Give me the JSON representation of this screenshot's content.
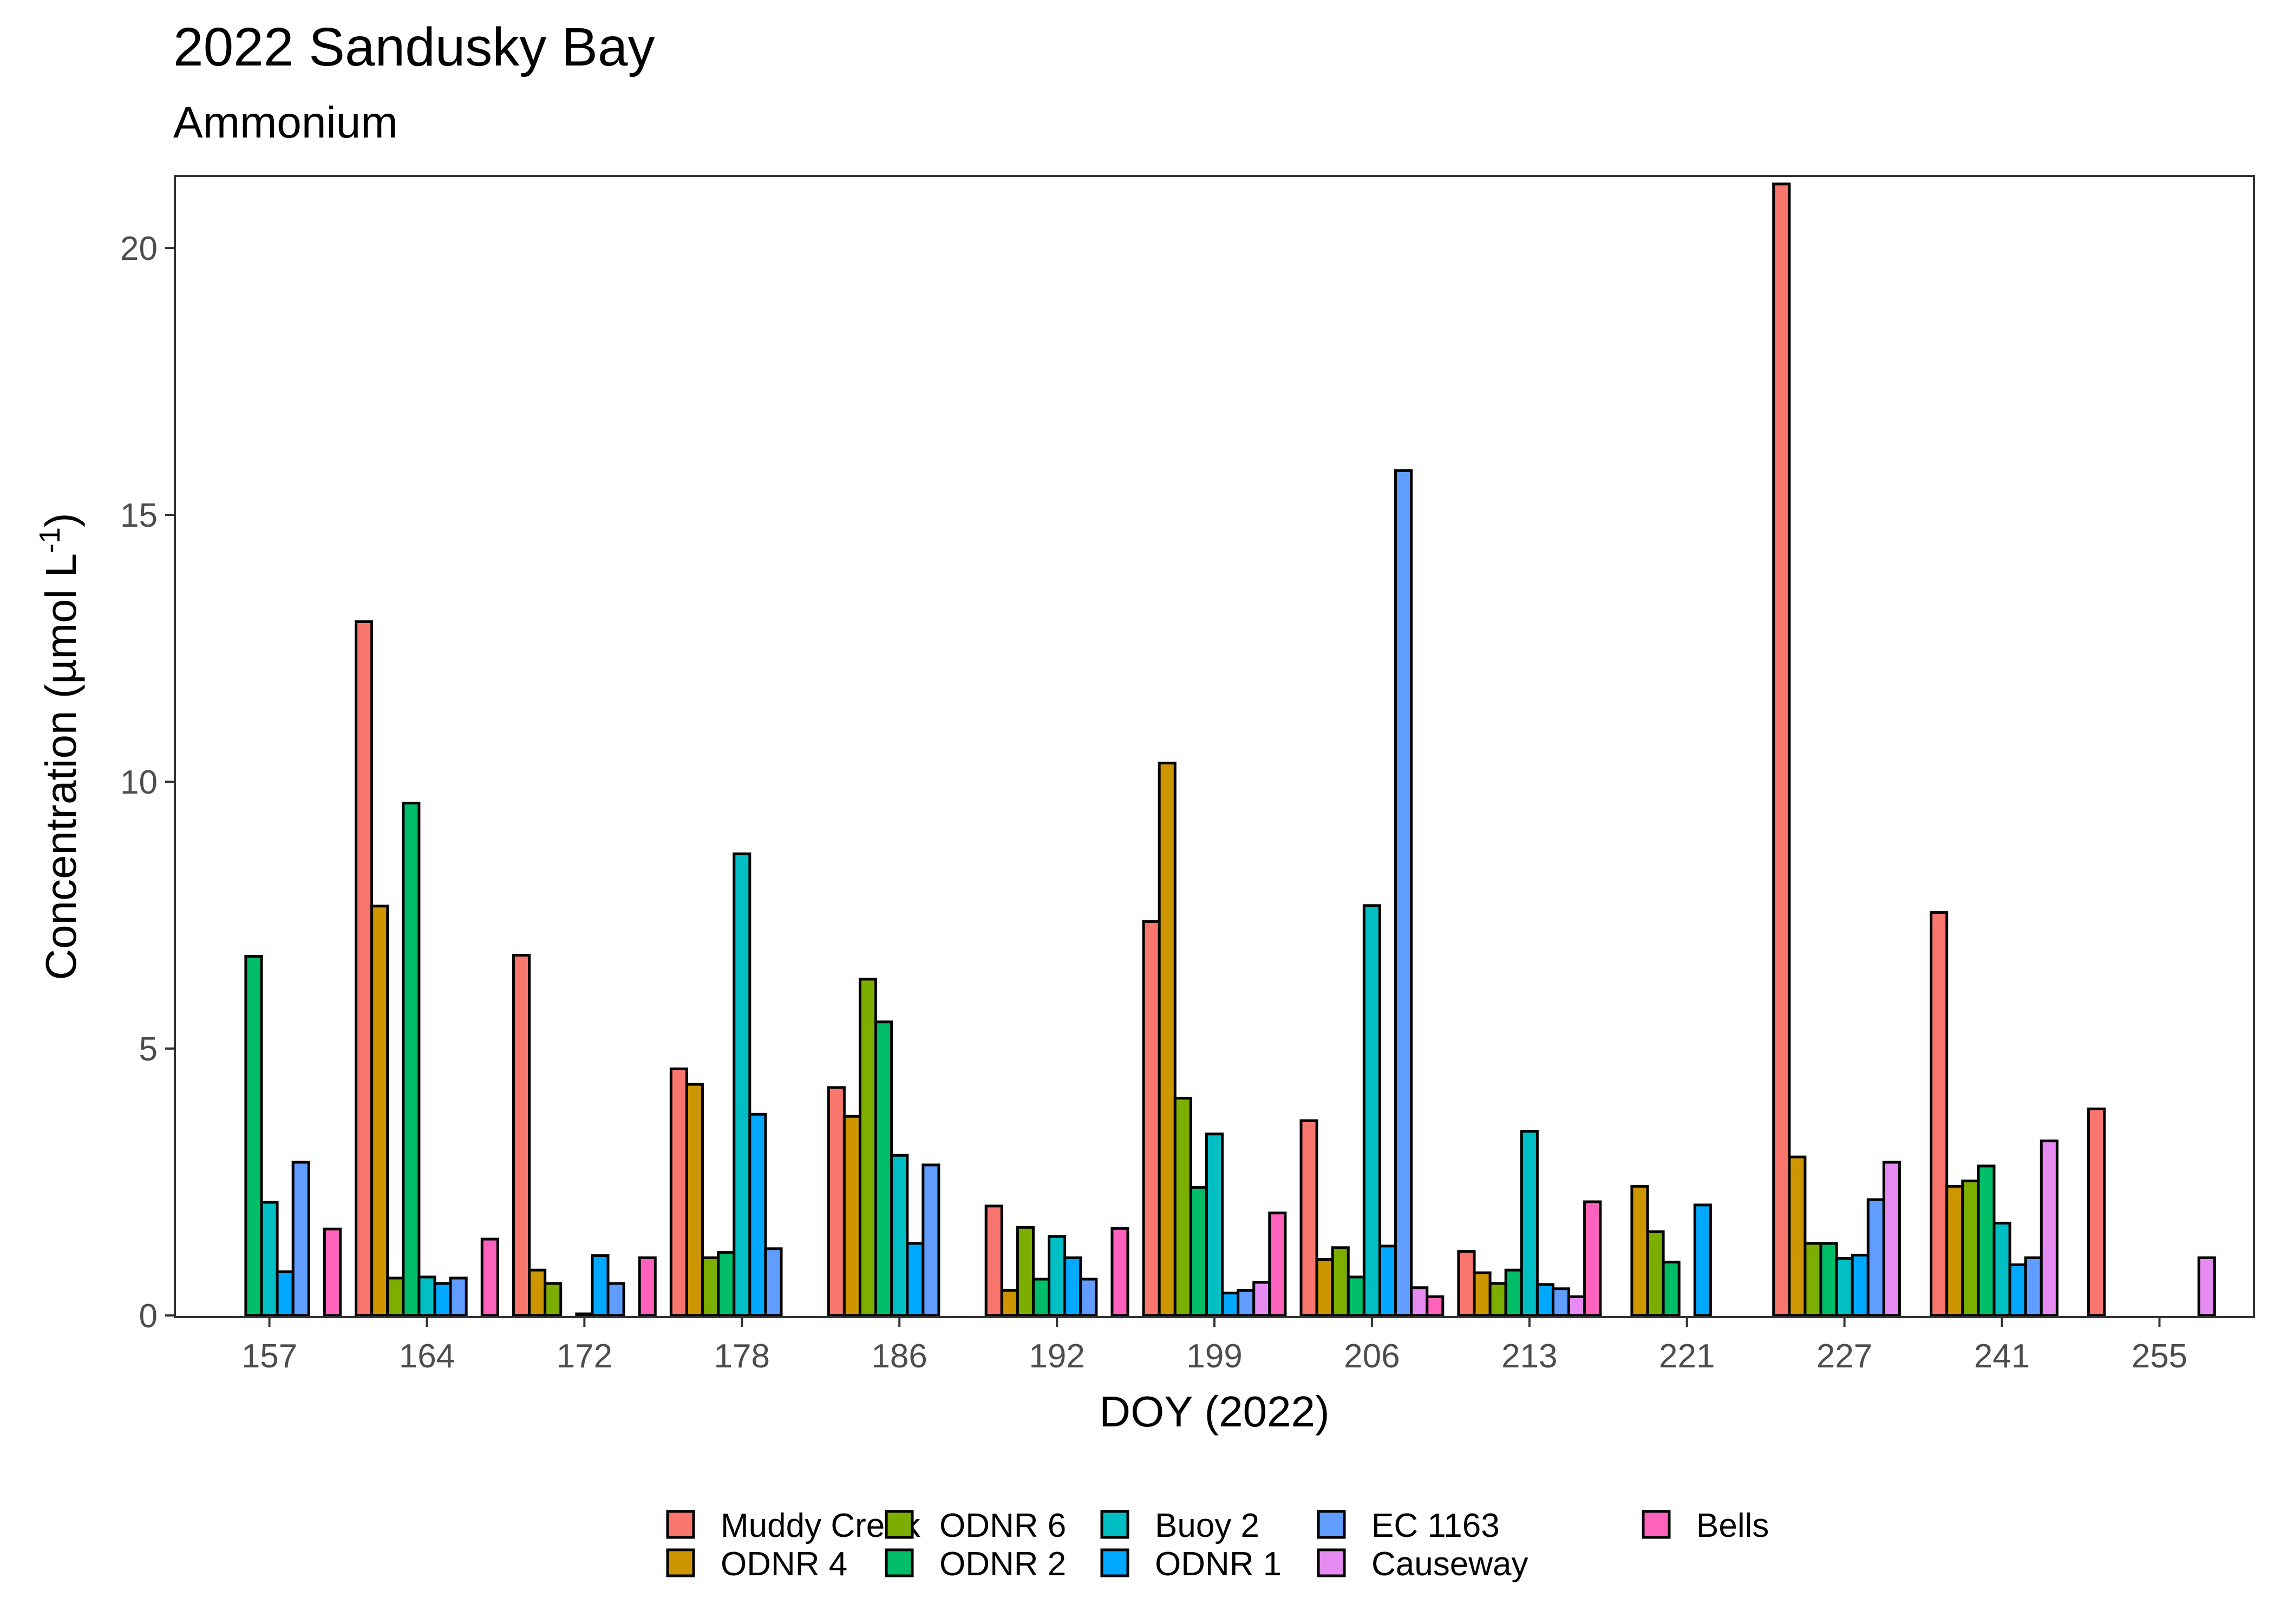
{
  "chart_data": {
    "type": "bar",
    "title": "2022 Sandusky Bay",
    "subtitle": "Ammonium",
    "xlabel": "DOY (2022)",
    "ylabel_main": "Concentration (µmol L",
    "ylabel_sup": "-1",
    "ylabel_close": ")",
    "ylim": [
      0,
      21.3
    ],
    "yticks": [
      0,
      5,
      10,
      15,
      20
    ],
    "grid": false,
    "legend_position": "bottom",
    "categories": [
      "157",
      "164",
      "172",
      "178",
      "186",
      "192",
      "199",
      "206",
      "213",
      "221",
      "227",
      "241",
      "255"
    ],
    "series": [
      {
        "name": "Muddy Creek",
        "color": "#F8766D",
        "values": [
          null,
          13.0,
          6.75,
          4.62,
          4.27,
          2.05,
          7.38,
          3.65,
          1.2,
          null,
          21.2,
          7.55,
          3.87
        ]
      },
      {
        "name": "ODNR 4",
        "color": "#CD9600",
        "values": [
          null,
          7.67,
          0.85,
          4.33,
          3.73,
          0.47,
          10.35,
          1.05,
          0.8,
          2.42,
          2.97,
          2.42,
          null
        ]
      },
      {
        "name": "ODNR 6",
        "color": "#7CAE00",
        "values": [
          null,
          0.7,
          0.6,
          1.08,
          6.3,
          1.65,
          4.07,
          1.27,
          0.6,
          1.57,
          1.35,
          2.52,
          null
        ]
      },
      {
        "name": "ODNR 2",
        "color": "#00BE67",
        "values": [
          6.73,
          9.6,
          null,
          1.18,
          5.5,
          0.68,
          2.4,
          0.72,
          0.85,
          1.0,
          1.35,
          2.8,
          null
        ]
      },
      {
        "name": "Buoy 2",
        "color": "#00BFC4",
        "values": [
          2.12,
          0.72,
          0.03,
          8.65,
          3.0,
          1.48,
          3.4,
          7.68,
          3.45,
          null,
          1.07,
          1.73,
          null
        ]
      },
      {
        "name": "ODNR 1",
        "color": "#00A9FF",
        "values": [
          0.82,
          0.6,
          1.12,
          3.77,
          1.35,
          1.08,
          0.42,
          1.3,
          0.58,
          2.07,
          1.13,
          0.95,
          null
        ]
      },
      {
        "name": "EC 1163",
        "color": "#619CFF",
        "values": [
          2.87,
          0.7,
          0.6,
          1.25,
          2.82,
          0.68,
          0.47,
          15.83,
          0.5,
          null,
          2.17,
          1.08,
          null
        ]
      },
      {
        "name": "Causeway",
        "color": "#E68BF1",
        "values": [
          null,
          null,
          null,
          null,
          null,
          null,
          0.62,
          0.52,
          0.35,
          null,
          2.87,
          3.27,
          1.08
        ]
      },
      {
        "name": "Bells",
        "color": "#FF62BC",
        "values": [
          1.62,
          1.43,
          1.08,
          null,
          null,
          1.63,
          1.92,
          0.35,
          2.13,
          null,
          null,
          null,
          null
        ]
      }
    ]
  }
}
